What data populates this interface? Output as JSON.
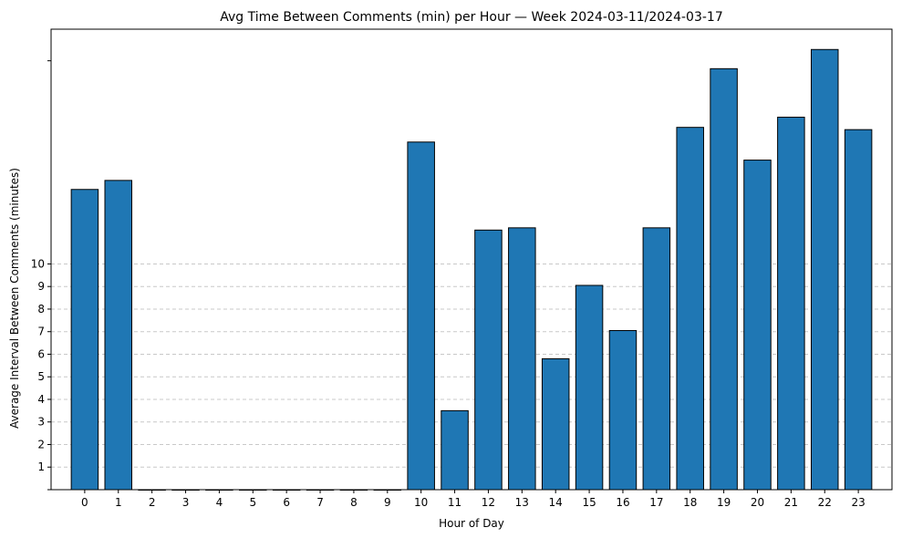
{
  "chart_data": {
    "type": "bar",
    "title": "Avg Time Between Comments (min) per Hour — Week 2024-03-11/2024-03-17",
    "xlabel": "Hour of Day",
    "ylabel": "Average Interval Between Comments (minutes)",
    "categories": [
      "0",
      "1",
      "2",
      "3",
      "4",
      "5",
      "6",
      "7",
      "8",
      "9",
      "10",
      "11",
      "12",
      "13",
      "14",
      "15",
      "16",
      "17",
      "18",
      "19",
      "20",
      "21",
      "22",
      "23"
    ],
    "values": [
      13.3,
      13.7,
      0,
      0,
      0,
      0,
      0,
      0,
      0,
      0,
      15.4,
      3.5,
      11.5,
      11.6,
      5.8,
      9.05,
      7.05,
      11.6,
      16.05,
      18.65,
      14.6,
      16.5,
      19.5,
      15.95
    ],
    "ylim": [
      0,
      20.4
    ],
    "yticks": [
      "1",
      "2",
      "3",
      "4",
      "5",
      "6",
      "7",
      "8",
      "9",
      "10"
    ],
    "grid": "y-dashed",
    "bar_color": "#1f77b4",
    "bar_edge_color": "#000000",
    "grid_color": "#c8c8c8"
  }
}
